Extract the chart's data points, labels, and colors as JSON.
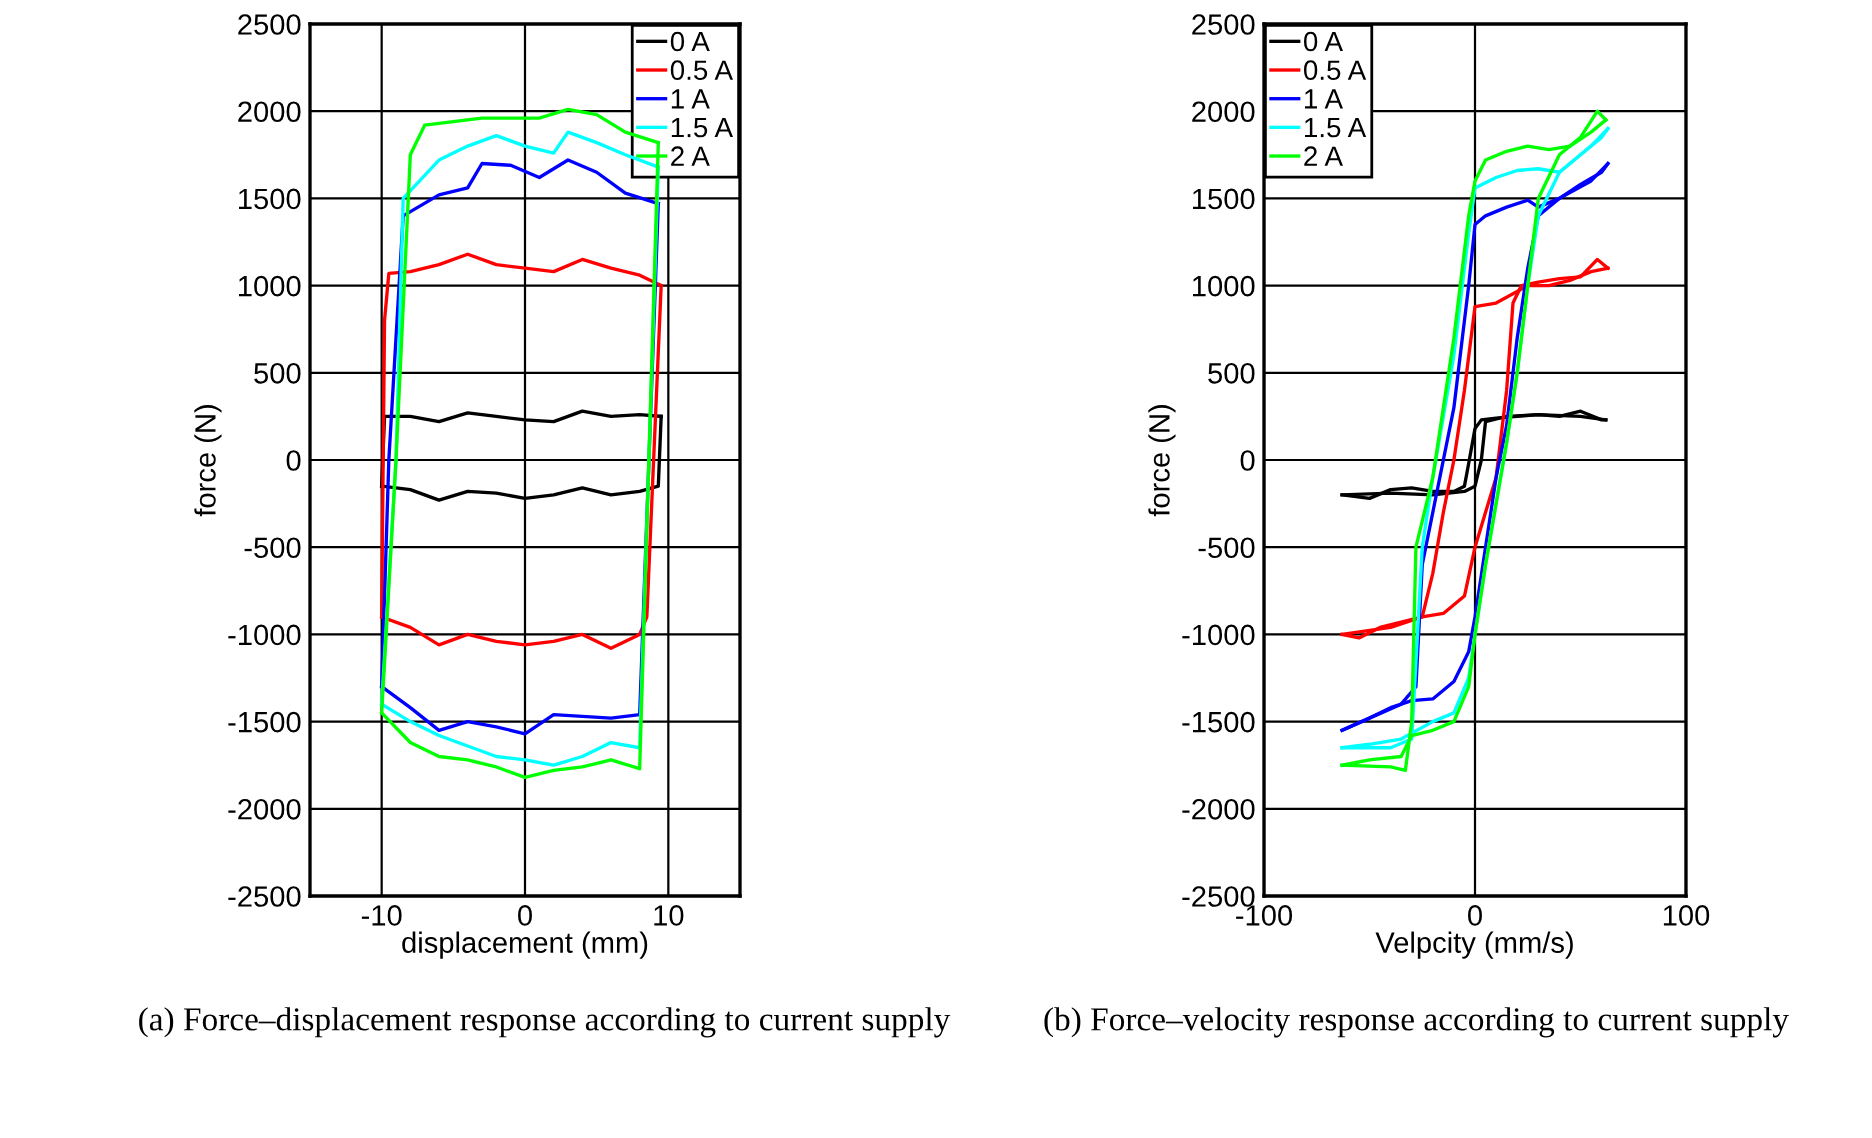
{
  "chart_data": [
    {
      "type": "line",
      "xlabel": "displacement (mm)",
      "ylabel": "force (N)",
      "xlim": [
        -15,
        15
      ],
      "xticks": [
        -10,
        0,
        10
      ],
      "ylim": [
        -2500,
        2500
      ],
      "yticks": [
        -2500,
        -2000,
        -1500,
        -1000,
        -500,
        0,
        500,
        1000,
        1500,
        2000,
        2500
      ],
      "grid": true,
      "legend": "top right",
      "marker": "none",
      "line_style": "solid",
      "annotations": [
        "(a) Force–displacement response according to current supply"
      ],
      "series": [
        {
          "name": "0 A",
          "color": "#000000",
          "x": [
            -10,
            -9.8,
            -8,
            -6,
            -4,
            -2,
            0,
            2,
            4,
            6,
            8,
            9.5
          ],
          "values": [
            -150,
            250,
            250,
            220,
            270,
            250,
            230,
            220,
            280,
            250,
            260,
            250
          ]
        },
        {
          "color": "#000000",
          "x": [
            -10,
            -8,
            -6,
            -4,
            -2,
            0,
            2,
            4,
            6,
            8,
            9.3,
            9.5
          ],
          "values": [
            -150,
            -170,
            -230,
            -180,
            -190,
            -220,
            -200,
            -160,
            -200,
            -180,
            -150,
            250
          ]
        },
        {
          "name": "0.5 A",
          "color": "#ff0000",
          "x": [
            -10,
            -9.8,
            -9.5,
            -8,
            -6,
            -4,
            -2,
            0,
            2,
            4,
            6,
            8,
            9.5
          ],
          "values": [
            -900,
            800,
            1070,
            1080,
            1120,
            1180,
            1120,
            1100,
            1080,
            1150,
            1100,
            1060,
            1000
          ]
        },
        {
          "color": "#ff0000",
          "x": [
            -10,
            -8,
            -6,
            -4,
            -2,
            0,
            2,
            4,
            6,
            8,
            8.5,
            9.5
          ],
          "values": [
            -900,
            -960,
            -1060,
            -1000,
            -1040,
            -1060,
            -1040,
            -1000,
            -1080,
            -1000,
            -900,
            1000
          ]
        },
        {
          "name": "1 A",
          "color": "#0000ff",
          "x": [
            -10,
            -9.5,
            -8.5,
            -6,
            -4,
            -3,
            -1,
            1,
            3,
            5,
            7,
            9.3
          ],
          "values": [
            -1300,
            0,
            1400,
            1520,
            1560,
            1700,
            1690,
            1620,
            1720,
            1650,
            1530,
            1470
          ]
        },
        {
          "color": "#0000ff",
          "x": [
            -10,
            -8,
            -6,
            -4,
            -2,
            0,
            2,
            4,
            6,
            8,
            9.3
          ],
          "values": [
            -1300,
            -1420,
            -1550,
            -1500,
            -1530,
            -1570,
            -1460,
            -1470,
            -1480,
            -1460,
            1470
          ]
        },
        {
          "name": "1.5 A",
          "color": "#00ffff",
          "x": [
            -10,
            -9,
            -8.5,
            -6,
            -4,
            -2,
            0,
            2,
            3,
            5,
            7,
            9.3
          ],
          "values": [
            -1400,
            0,
            1500,
            1720,
            1800,
            1860,
            1800,
            1760,
            1880,
            1820,
            1750,
            1680
          ]
        },
        {
          "color": "#00ffff",
          "x": [
            -10,
            -8,
            -6,
            -4,
            -2,
            0,
            2,
            4,
            6,
            8,
            9.3
          ],
          "values": [
            -1400,
            -1500,
            -1580,
            -1640,
            -1700,
            -1720,
            -1750,
            -1700,
            -1620,
            -1650,
            1680
          ]
        },
        {
          "name": "2 A",
          "color": "#00ff00",
          "x": [
            -10,
            -9,
            -8,
            -7,
            -5,
            -3,
            -1,
            1,
            3,
            5,
            7,
            9.3
          ],
          "values": [
            -1450,
            0,
            1750,
            1920,
            1940,
            1960,
            1960,
            1960,
            2010,
            1980,
            1880,
            1820
          ]
        },
        {
          "color": "#00ff00",
          "x": [
            -10,
            -8,
            -6,
            -4,
            -2,
            0,
            2,
            4,
            6,
            8,
            9.3
          ],
          "values": [
            -1450,
            -1620,
            -1700,
            -1720,
            -1760,
            -1820,
            -1780,
            -1760,
            -1720,
            -1770,
            1820
          ]
        }
      ]
    },
    {
      "type": "line",
      "xlabel": "Velpcity (mm/s)",
      "ylabel": "force (N)",
      "xlim": [
        -100,
        100
      ],
      "xticks": [
        -100,
        0,
        100
      ],
      "ylim": [
        -2500,
        2500
      ],
      "yticks": [
        -2500,
        -2000,
        -1500,
        -1000,
        -500,
        0,
        500,
        1000,
        1500,
        2000,
        2500
      ],
      "grid": true,
      "legend": "top left",
      "marker": "none",
      "line_style": "solid",
      "annotations": [
        "(b) Force–velocity response according to current supply"
      ],
      "series": [
        {
          "name": "0 A",
          "color": "#000000",
          "x": [
            -63,
            -50,
            -40,
            -30,
            -20,
            -10,
            -5,
            -3,
            0,
            3,
            10,
            20,
            30,
            40,
            50,
            60,
            62
          ],
          "values": [
            -200,
            -220,
            -170,
            -160,
            -180,
            -180,
            -150,
            -20,
            180,
            230,
            240,
            250,
            260,
            250,
            280,
            230,
            230
          ]
        },
        {
          "color": "#000000",
          "x": [
            -63,
            -40,
            -20,
            -5,
            0,
            3,
            5,
            15,
            30,
            50,
            62
          ],
          "values": [
            -200,
            -190,
            -200,
            -180,
            -150,
            0,
            220,
            250,
            260,
            250,
            230
          ]
        },
        {
          "name": "0.5 A",
          "color": "#ff0000",
          "x": [
            -63,
            -55,
            -45,
            -35,
            -25,
            -15,
            -5,
            0,
            5,
            10,
            15,
            18,
            22,
            30,
            40,
            50,
            58,
            63
          ],
          "values": [
            -1000,
            -1020,
            -960,
            -930,
            -900,
            -880,
            -780,
            -500,
            -300,
            -100,
            400,
            900,
            1000,
            1020,
            1040,
            1050,
            1150,
            1100
          ]
        },
        {
          "color": "#ff0000",
          "x": [
            -63,
            -40,
            -25,
            -20,
            -15,
            -10,
            -5,
            0,
            10,
            25,
            35,
            45,
            55,
            63
          ],
          "values": [
            -1000,
            -960,
            -900,
            -650,
            -300,
            0,
            400,
            880,
            900,
            1000,
            1000,
            1030,
            1080,
            1100
          ]
        },
        {
          "name": "1 A",
          "color": "#0000ff",
          "x": [
            -63,
            -50,
            -40,
            -30,
            -20,
            -10,
            -3,
            0,
            5,
            10,
            15,
            20,
            25,
            30,
            40,
            50,
            60,
            63
          ],
          "values": [
            -1550,
            -1480,
            -1420,
            -1380,
            -1370,
            -1270,
            -1100,
            -900,
            -500,
            -100,
            200,
            700,
            1100,
            1400,
            1500,
            1580,
            1650,
            1700
          ]
        },
        {
          "color": "#0000ff",
          "x": [
            -63,
            -50,
            -35,
            -28,
            -25,
            -20,
            -10,
            -3,
            0,
            5,
            15,
            25,
            30,
            40,
            55,
            63
          ],
          "values": [
            -1550,
            -1480,
            -1400,
            -1300,
            -600,
            -300,
            300,
            1000,
            1350,
            1400,
            1450,
            1490,
            1450,
            1500,
            1600,
            1700
          ]
        },
        {
          "name": "1.5 A",
          "color": "#00ffff",
          "x": [
            -63,
            -50,
            -35,
            -20,
            -10,
            -3,
            0,
            5,
            15,
            20,
            25,
            30,
            40,
            50,
            60,
            63
          ],
          "values": [
            -1650,
            -1630,
            -1600,
            -1500,
            -1450,
            -1250,
            -1000,
            -600,
            100,
            500,
            1000,
            1400,
            1650,
            1750,
            1850,
            1900
          ]
        },
        {
          "color": "#00ffff",
          "x": [
            -63,
            -40,
            -30,
            -25,
            -20,
            -10,
            -3,
            0,
            10,
            20,
            30,
            40,
            55,
            63
          ],
          "values": [
            -1650,
            -1650,
            -1600,
            -500,
            -100,
            600,
            1300,
            1560,
            1620,
            1660,
            1670,
            1650,
            1800,
            1900
          ]
        },
        {
          "name": "2 A",
          "color": "#00ff00",
          "x": [
            -63,
            -50,
            -35,
            -30,
            -20,
            -10,
            -3,
            0,
            5,
            15,
            20,
            25,
            30,
            40,
            50,
            58,
            62
          ],
          "values": [
            -1750,
            -1720,
            -1700,
            -1580,
            -1550,
            -1500,
            -1300,
            -1000,
            -600,
            100,
            500,
            1000,
            1500,
            1750,
            1850,
            2000,
            1950
          ]
        },
        {
          "color": "#00ff00",
          "x": [
            -63,
            -40,
            -33,
            -30,
            -28,
            -20,
            -10,
            -3,
            0,
            5,
            15,
            25,
            35,
            45,
            55,
            62
          ],
          "values": [
            -1750,
            -1760,
            -1780,
            -1500,
            -500,
            -100,
            700,
            1400,
            1600,
            1720,
            1770,
            1800,
            1780,
            1800,
            1880,
            1950
          ]
        }
      ]
    }
  ]
}
